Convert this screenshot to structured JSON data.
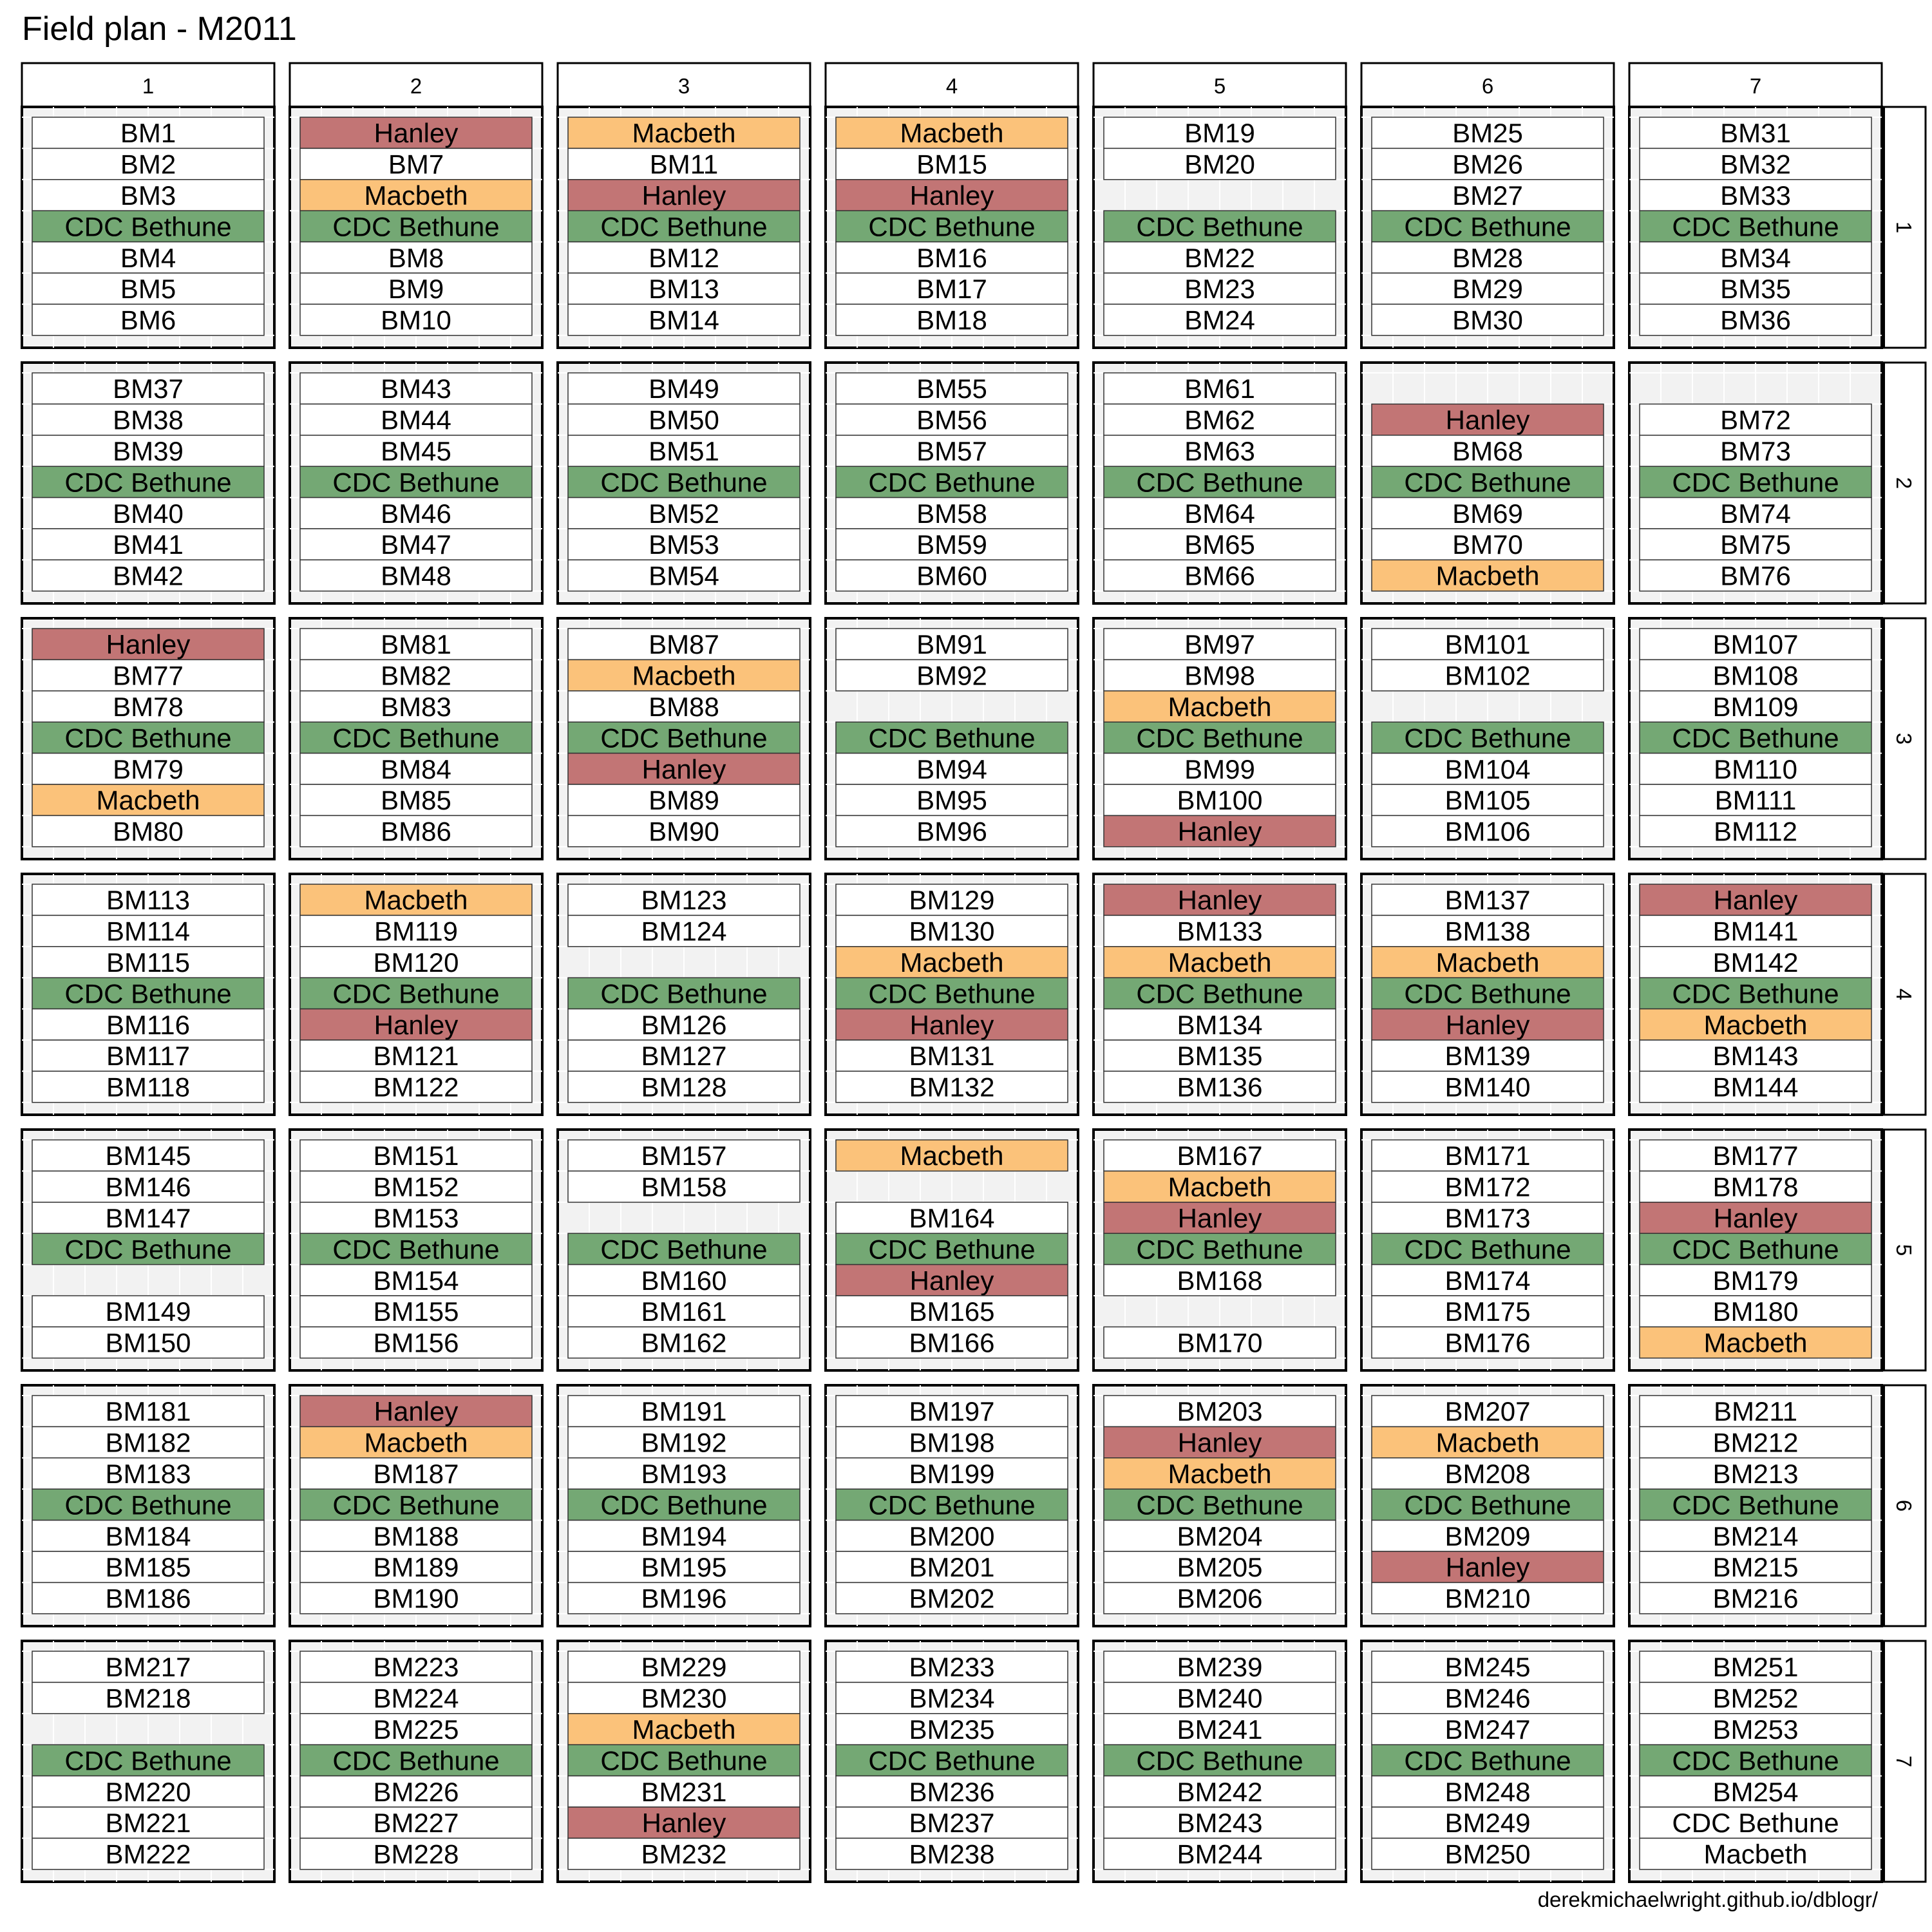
{
  "title": "Field plan - M2011",
  "caption": "derekmichaelwright.github.io/dblogr/",
  "colors": {
    "Hanley": "#c27575",
    "Macbeth": "#fbc27a",
    "CDC Bethune": "#74a874",
    "plot": "#ffffff",
    "empty": "#f0f0f0",
    "panel_bg": "#f2f2f2",
    "border": "#000000"
  },
  "chart_data": {
    "type": "table",
    "title": "Field plan - M2011",
    "col_facets": [
      "1",
      "2",
      "3",
      "4",
      "5",
      "6",
      "7"
    ],
    "row_facets": [
      "1",
      "2",
      "3",
      "4",
      "5",
      "6",
      "7"
    ],
    "rows_per_block": 7,
    "blocks": [
      [
        [
          "BM1",
          "BM2",
          "BM3",
          "CDC Bethune",
          "BM4",
          "BM5",
          "BM6"
        ],
        [
          "Hanley",
          "BM7",
          "Macbeth",
          "CDC Bethune",
          "BM8",
          "BM9",
          "BM10"
        ],
        [
          "Macbeth",
          "BM11",
          "Hanley",
          "CDC Bethune",
          "BM12",
          "BM13",
          "BM14"
        ],
        [
          "Macbeth",
          "BM15",
          "Hanley",
          "CDC Bethune",
          "BM16",
          "BM17",
          "BM18"
        ],
        [
          "BM19",
          "BM20",
          "",
          "CDC Bethune",
          "BM22",
          "BM23",
          "BM24"
        ],
        [
          "BM25",
          "BM26",
          "BM27",
          "CDC Bethune",
          "BM28",
          "BM29",
          "BM30"
        ],
        [
          "BM31",
          "BM32",
          "BM33",
          "CDC Bethune",
          "BM34",
          "BM35",
          "BM36"
        ]
      ],
      [
        [
          "BM37",
          "BM38",
          "BM39",
          "CDC Bethune",
          "BM40",
          "BM41",
          "BM42"
        ],
        [
          "BM43",
          "BM44",
          "BM45",
          "CDC Bethune",
          "BM46",
          "BM47",
          "BM48"
        ],
        [
          "BM49",
          "BM50",
          "BM51",
          "CDC Bethune",
          "BM52",
          "BM53",
          "BM54"
        ],
        [
          "BM55",
          "BM56",
          "BM57",
          "CDC Bethune",
          "BM58",
          "BM59",
          "BM60"
        ],
        [
          "BM61",
          "BM62",
          "BM63",
          "CDC Bethune",
          "BM64",
          "BM65",
          "BM66"
        ],
        [
          "",
          "Hanley",
          "BM68",
          "CDC Bethune",
          "BM69",
          "BM70",
          "Macbeth"
        ],
        [
          "",
          "BM72",
          "BM73",
          "CDC Bethune",
          "BM74",
          "BM75",
          "BM76"
        ]
      ],
      [
        [
          "Hanley",
          "BM77",
          "BM78",
          "CDC Bethune",
          "BM79",
          "Macbeth",
          "BM80"
        ],
        [
          "BM81",
          "BM82",
          "BM83",
          "CDC Bethune",
          "BM84",
          "BM85",
          "BM86"
        ],
        [
          "BM87",
          "Macbeth",
          "BM88",
          "CDC Bethune",
          "Hanley",
          "BM89",
          "BM90"
        ],
        [
          "BM91",
          "BM92",
          "",
          "CDC Bethune",
          "BM94",
          "BM95",
          "BM96"
        ],
        [
          "BM97",
          "BM98",
          "Macbeth",
          "CDC Bethune",
          "BM99",
          "BM100",
          "Hanley"
        ],
        [
          "BM101",
          "BM102",
          "",
          "CDC Bethune",
          "BM104",
          "BM105",
          "BM106"
        ],
        [
          "BM107",
          "BM108",
          "BM109",
          "CDC Bethune",
          "BM110",
          "BM111",
          "BM112"
        ]
      ],
      [
        [
          "BM113",
          "BM114",
          "BM115",
          "CDC Bethune",
          "BM116",
          "BM117",
          "BM118"
        ],
        [
          "Macbeth",
          "BM119",
          "BM120",
          "CDC Bethune",
          "Hanley",
          "BM121",
          "BM122"
        ],
        [
          "BM123",
          "BM124",
          "",
          "CDC Bethune",
          "BM126",
          "BM127",
          "BM128"
        ],
        [
          "BM129",
          "BM130",
          "Macbeth",
          "CDC Bethune",
          "Hanley",
          "BM131",
          "BM132"
        ],
        [
          "Hanley",
          "BM133",
          "Macbeth",
          "CDC Bethune",
          "BM134",
          "BM135",
          "BM136"
        ],
        [
          "BM137",
          "BM138",
          "Macbeth",
          "CDC Bethune",
          "Hanley",
          "BM139",
          "BM140"
        ],
        [
          "Hanley",
          "BM141",
          "BM142",
          "CDC Bethune",
          "Macbeth",
          "BM143",
          "BM144"
        ]
      ],
      [
        [
          "BM145",
          "BM146",
          "BM147",
          "CDC Bethune",
          "",
          "BM149",
          "BM150"
        ],
        [
          "BM151",
          "BM152",
          "BM153",
          "CDC Bethune",
          "BM154",
          "BM155",
          "BM156"
        ],
        [
          "BM157",
          "BM158",
          "",
          "CDC Bethune",
          "BM160",
          "BM161",
          "BM162"
        ],
        [
          "Macbeth",
          "",
          "BM164",
          "CDC Bethune",
          "Hanley",
          "BM165",
          "BM166"
        ],
        [
          "BM167",
          "Macbeth",
          "Hanley",
          "CDC Bethune",
          "BM168",
          "",
          "BM170"
        ],
        [
          "BM171",
          "BM172",
          "BM173",
          "CDC Bethune",
          "BM174",
          "BM175",
          "BM176"
        ],
        [
          "BM177",
          "BM178",
          "Hanley",
          "CDC Bethune",
          "BM179",
          "BM180",
          "Macbeth"
        ]
      ],
      [
        [
          "BM181",
          "BM182",
          "BM183",
          "CDC Bethune",
          "BM184",
          "BM185",
          "BM186"
        ],
        [
          "Hanley",
          "Macbeth",
          "BM187",
          "CDC Bethune",
          "BM188",
          "BM189",
          "BM190"
        ],
        [
          "BM191",
          "BM192",
          "BM193",
          "CDC Bethune",
          "BM194",
          "BM195",
          "BM196"
        ],
        [
          "BM197",
          "BM198",
          "BM199",
          "CDC Bethune",
          "BM200",
          "BM201",
          "BM202"
        ],
        [
          "BM203",
          "Hanley",
          "Macbeth",
          "CDC Bethune",
          "BM204",
          "BM205",
          "BM206"
        ],
        [
          "BM207",
          "Macbeth",
          "BM208",
          "CDC Bethune",
          "BM209",
          "Hanley",
          "BM210"
        ],
        [
          "BM211",
          "BM212",
          "BM213",
          "CDC Bethune",
          "BM214",
          "BM215",
          "BM216"
        ]
      ],
      [
        [
          "BM217",
          "BM218",
          "",
          "CDC Bethune",
          "BM220",
          "BM221",
          "BM222"
        ],
        [
          "BM223",
          "BM224",
          "BM225",
          "CDC Bethune",
          "BM226",
          "BM227",
          "BM228"
        ],
        [
          "BM229",
          "BM230",
          "Macbeth",
          "CDC Bethune",
          "BM231",
          "Hanley",
          "BM232"
        ],
        [
          "BM233",
          "BM234",
          "BM235",
          "CDC Bethune",
          "BM236",
          "BM237",
          "BM238"
        ],
        [
          "BM239",
          "BM240",
          "BM241",
          "CDC Bethune",
          "BM242",
          "BM243",
          "BM244"
        ],
        [
          "BM245",
          "BM246",
          "BM247",
          "CDC Bethune",
          "BM248",
          "BM249",
          "BM250"
        ],
        [
          "BM251",
          "BM252",
          "BM253",
          "CDC Bethune",
          "BM254",
          "CDC Bethune~",
          "Macbeth~"
        ]
      ]
    ]
  }
}
